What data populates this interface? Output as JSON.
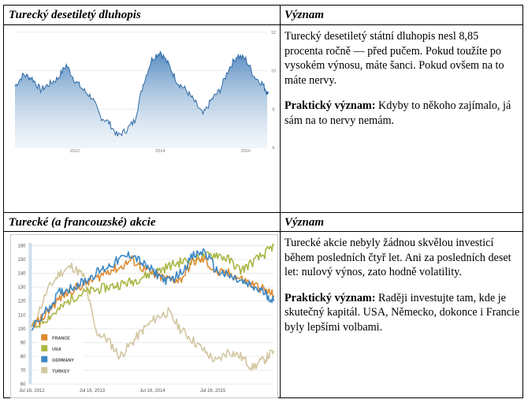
{
  "table": {
    "row1": {
      "left_header": "Turecký desetiletý dluhopis",
      "right_header": "Význam",
      "body_p1": "Turecký desetiletý státní dluhopis nesl 8,85 procenta ročně — před pučem. Pokud toužíte po vysokém výnosu, máte šanci. Pokud ovšem na to máte nervy.",
      "body_p2_label": "Praktický význam:",
      "body_p2": " Kdyby to někoho zajímalo, já sám na to nervy nemám."
    },
    "row2": {
      "left_header": "Turecké (a francouzské) akcie",
      "right_header": "Význam",
      "body_p1": "Turecké akcie nebyly žádnou skvělou investicí během posledních čtyř let. Ani za posledních deset let: nulový výnos, zato hodně volatility.",
      "body_p2_label": "Praktický význam:",
      "body_p2": " Raději investujte tam, kde je skutečný kapitál. USA, Německo, dokonce i Francie byly lepšími volbami."
    }
  },
  "chart_data": [
    {
      "type": "area",
      "title": "",
      "xlabel": "",
      "ylabel": "",
      "x_ticks": [
        "2012",
        "2014",
        "2016"
      ],
      "y_ticks": [
        "12",
        "10",
        "8",
        "6"
      ],
      "ylim": [
        6,
        12
      ],
      "x": [
        2010.6,
        2010.8,
        2011.0,
        2011.2,
        2011.4,
        2011.6,
        2011.8,
        2012.0,
        2012.2,
        2012.4,
        2012.6,
        2012.8,
        2013.0,
        2013.2,
        2013.4,
        2013.6,
        2013.8,
        2014.0,
        2014.2,
        2014.4,
        2014.6,
        2014.8,
        2015.0,
        2015.2,
        2015.4,
        2015.6,
        2015.8,
        2016.0,
        2016.2,
        2016.4,
        2016.5
      ],
      "values": [
        9.2,
        9.8,
        9.6,
        9.0,
        9.3,
        9.6,
        10.3,
        9.5,
        9.0,
        8.6,
        7.6,
        7.3,
        6.6,
        6.9,
        7.4,
        9.3,
        10.6,
        11.0,
        10.3,
        9.4,
        9.0,
        8.4,
        7.7,
        8.5,
        9.0,
        10.1,
        10.8,
        10.6,
        9.7,
        9.3,
        8.85
      ],
      "fill_color": "#4f86bd",
      "line_color": "#2e6aa5"
    },
    {
      "type": "line",
      "title": "",
      "xlabel": "",
      "ylabel": "",
      "x_ticks": [
        "Jul 16, 2012",
        "Jul 16, 2013",
        "Jul 16, 2014",
        "Jul 16, 2015"
      ],
      "y_ticks": [
        "160",
        "150",
        "140",
        "130",
        "120",
        "110",
        "100",
        "90",
        "80",
        "70",
        "60"
      ],
      "ylim": [
        60,
        162
      ],
      "legend_position": "bottom-left",
      "x": [
        2012.54,
        2012.8,
        2013.0,
        2013.2,
        2013.4,
        2013.6,
        2013.8,
        2014.0,
        2014.2,
        2014.4,
        2014.6,
        2014.8,
        2015.0,
        2015.2,
        2015.4,
        2015.6,
        2015.8,
        2016.0,
        2016.2,
        2016.4,
        2016.55
      ],
      "series": [
        {
          "name": "FRANCE",
          "color": "#dd8a2f",
          "values": [
            100,
            112,
            122,
            128,
            132,
            136,
            142,
            144,
            150,
            143,
            138,
            136,
            135,
            148,
            150,
            140,
            140,
            136,
            132,
            128,
            124
          ]
        },
        {
          "name": "USA",
          "color": "#a9b543",
          "values": [
            100,
            108,
            114,
            122,
            126,
            128,
            130,
            132,
            134,
            138,
            141,
            145,
            148,
            150,
            152,
            154,
            150,
            142,
            148,
            154,
            160
          ]
        },
        {
          "name": "GERMANY",
          "color": "#3b87c4",
          "values": [
            100,
            114,
            126,
            130,
            134,
            140,
            145,
            150,
            154,
            146,
            140,
            134,
            140,
            152,
            156,
            142,
            138,
            134,
            130,
            126,
            120
          ]
        },
        {
          "name": "TURKEY",
          "color": "#d2c6a0",
          "values": [
            100,
            128,
            140,
            145,
            138,
            98,
            92,
            80,
            90,
            100,
            108,
            112,
            100,
            92,
            84,
            76,
            84,
            80,
            72,
            78,
            84
          ]
        }
      ]
    }
  ]
}
